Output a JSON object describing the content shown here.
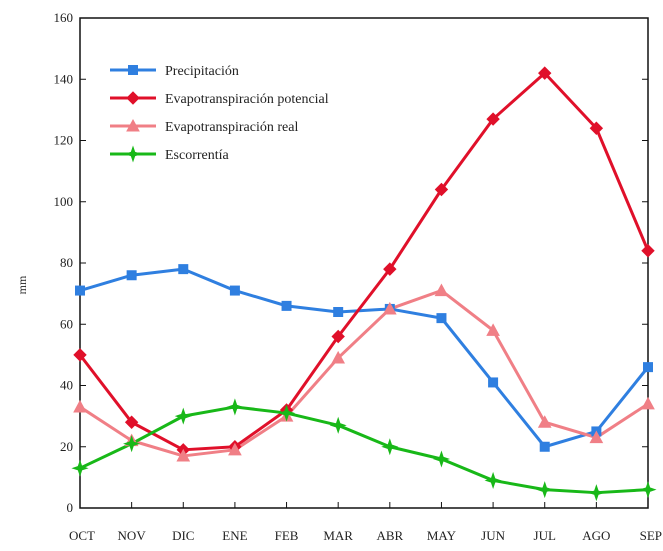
{
  "chart_data": {
    "type": "line",
    "title": "",
    "xlabel": "",
    "ylabel": "mm",
    "ylim": [
      0,
      160
    ],
    "yticks": [
      0,
      20,
      40,
      60,
      80,
      100,
      120,
      140,
      160
    ],
    "grid": false,
    "legend_position": "top-left",
    "categories": [
      "OCT",
      "NOV",
      "DIC",
      "ENE",
      "FEB",
      "MAR",
      "ABR",
      "MAY",
      "JUN",
      "JUL",
      "AGO",
      "SEP"
    ],
    "series": [
      {
        "name": "Precipitación",
        "color": "#2f7fe0",
        "marker": "square",
        "values": [
          71,
          76,
          78,
          71,
          66,
          64,
          65,
          62,
          41,
          20,
          25,
          46
        ]
      },
      {
        "name": "Evapotranspiración potencial",
        "color": "#e0102a",
        "marker": "diamond",
        "values": [
          50,
          28,
          19,
          20,
          32,
          56,
          78,
          104,
          127,
          142,
          124,
          84
        ]
      },
      {
        "name": "Evapotranspiración real",
        "color": "#f07f86",
        "marker": "triangle",
        "values": [
          33,
          22,
          17,
          19,
          30,
          49,
          65,
          71,
          58,
          28,
          23,
          34
        ]
      },
      {
        "name": "Escorrentía",
        "color": "#18b818",
        "marker": "star",
        "values": [
          13,
          21,
          30,
          33,
          31,
          27,
          20,
          16,
          9,
          6,
          5,
          6
        ]
      }
    ]
  }
}
